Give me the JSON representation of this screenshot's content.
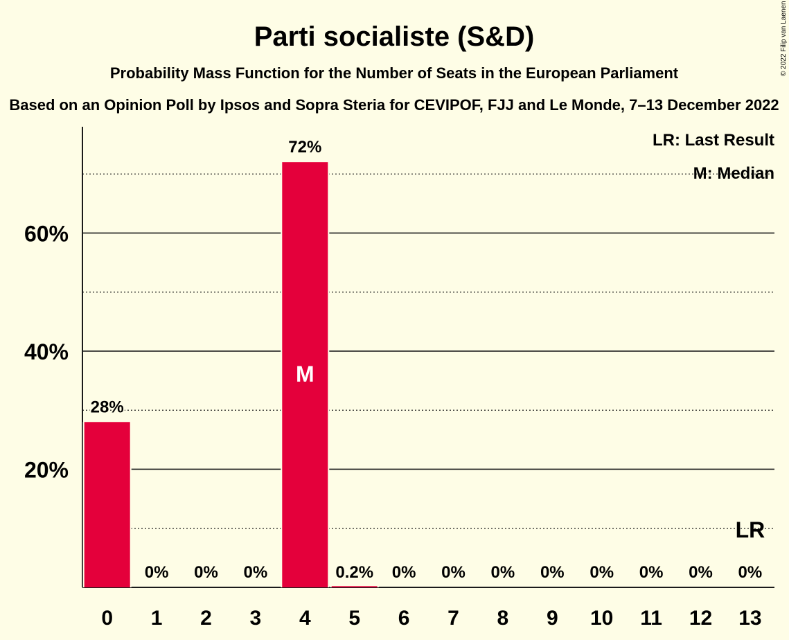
{
  "chart_data": {
    "type": "bar",
    "title": "Parti socialiste (S&D)",
    "subtitle": "Probability Mass Function for the Number of Seats in the European Parliament",
    "subtitle2": "Based on an Opinion Poll by Ipsos and Sopra Steria for CEVIPOF, FJJ and Le Monde, 7–13 December 2022",
    "copyright": "© 2022 Filip van Laenen",
    "categories": [
      "0",
      "1",
      "2",
      "3",
      "4",
      "5",
      "6",
      "7",
      "8",
      "9",
      "10",
      "11",
      "12",
      "13"
    ],
    "values": [
      28,
      0,
      0,
      0,
      72,
      0.2,
      0,
      0,
      0,
      0,
      0,
      0,
      0,
      0
    ],
    "value_labels": [
      "28%",
      "0%",
      "0%",
      "0%",
      "72%",
      "0.2%",
      "0%",
      "0%",
      "0%",
      "0%",
      "0%",
      "0%",
      "0%",
      "0%"
    ],
    "ylim": [
      0,
      78
    ],
    "yticks": [
      20,
      40,
      60
    ],
    "ytick_labels": [
      "20%",
      "40%",
      "60%"
    ],
    "minor_gridlines": [
      10,
      30,
      50,
      70
    ],
    "bar_color": "#e4003b",
    "median_index": 4,
    "median_marker": "M",
    "last_result_index": 13,
    "last_result_marker": "LR",
    "legend": [
      "LR: Last Result",
      "M: Median"
    ],
    "legend_position": "top-right",
    "grid": true
  }
}
